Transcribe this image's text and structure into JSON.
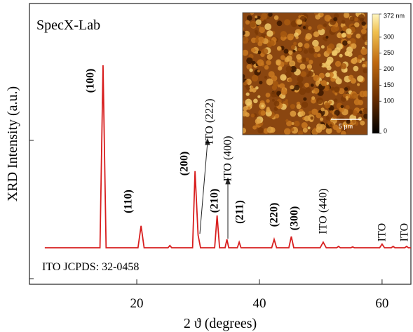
{
  "chart_data": {
    "type": "line",
    "watermark": "SpecX-Lab",
    "note": "ITO JCPDS: 32-0458",
    "x_label": "2 ϑ (degrees)",
    "y_label": "XRD Intensity (a.u.)",
    "xlim": [
      2.5,
      64.7
    ],
    "xticks": [
      20,
      40,
      60
    ],
    "ylim": [
      0,
      100
    ],
    "color": "#d81e1e",
    "x": [
      5,
      14.0,
      14.5,
      15.0,
      20.2,
      20.7,
      21.2,
      25.1,
      25.4,
      25.7,
      29.1,
      29.5,
      30.0,
      30.4,
      32.7,
      33.1,
      33.5,
      34.4,
      34.7,
      35.0,
      36.4,
      36.7,
      37.0,
      42.0,
      42.4,
      42.8,
      44.8,
      45.2,
      45.6,
      49.9,
      50.4,
      50.9,
      52.6,
      52.9,
      53.2,
      54.9,
      55.2,
      55.5,
      59.6,
      60.0,
      60.4,
      61.5,
      61.8,
      62.1,
      63.7,
      64.0,
      64.3,
      64.7
    ],
    "values": [
      13,
      13,
      78,
      13,
      13,
      20.8,
      13,
      13,
      13.8,
      13,
      13,
      40.3,
      17.5,
      13,
      13,
      24.5,
      13,
      13,
      16,
      13,
      13,
      15,
      13,
      13,
      16,
      13,
      13,
      17,
      13,
      13,
      15,
      13,
      13,
      13.5,
      13,
      13,
      13.3,
      13,
      13,
      14.3,
      13,
      13,
      13.5,
      13,
      13,
      13.5,
      13,
      13
    ],
    "peak_labels": [
      "(100)",
      "(110)",
      "(200)",
      "ITO (222)",
      "(210)",
      "ITO (400)",
      "(211)",
      "(220)",
      "(300)",
      "ITO (440)",
      "ITO",
      "ITO"
    ],
    "inset": {
      "scale_bar": "5 μm",
      "clim": [
        0,
        372
      ],
      "colorbar_ticks": [
        {
          "value": 372,
          "label": "372 nm"
        },
        300,
        250,
        200,
        150,
        100,
        0
      ]
    }
  }
}
